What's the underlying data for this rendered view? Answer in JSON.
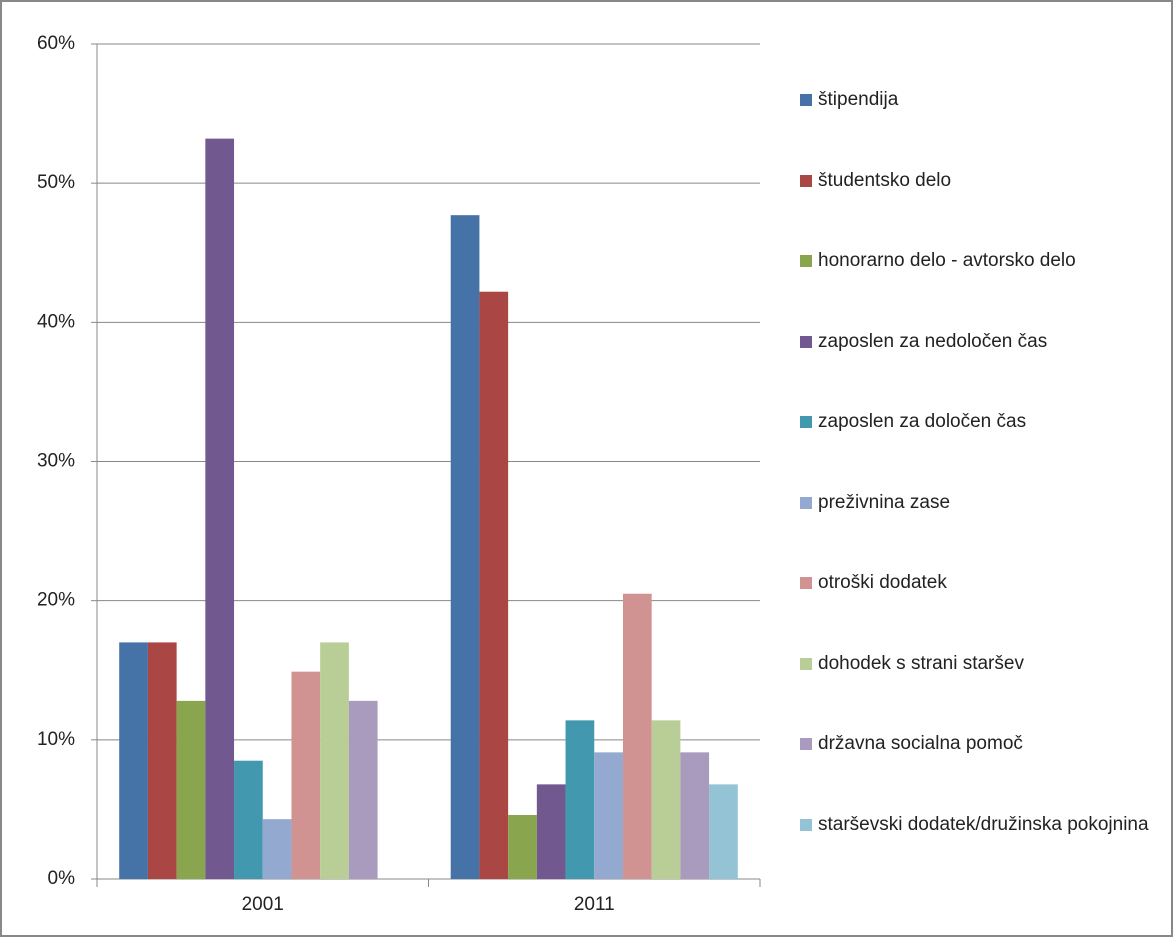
{
  "chart_data": {
    "type": "bar",
    "categories": [
      "2001",
      "2011"
    ],
    "series": [
      {
        "name": "štipendija",
        "color": "#4572a7",
        "values": [
          17.0,
          47.7
        ]
      },
      {
        "name": "študentsko delo",
        "color": "#aa4643",
        "values": [
          17.0,
          42.2
        ]
      },
      {
        "name": "honorarno delo - avtorsko delo",
        "color": "#89a54e",
        "values": [
          12.8,
          4.6
        ]
      },
      {
        "name": "zaposlen za nedoločen čas",
        "color": "#71588f",
        "values": [
          53.2,
          6.8
        ]
      },
      {
        "name": "zaposlen za določen čas",
        "color": "#4198af",
        "values": [
          8.5,
          11.4
        ]
      },
      {
        "name": "preživnina zase",
        "color": "#93a9cf",
        "values": [
          4.3,
          9.1
        ]
      },
      {
        "name": "otroški dodatek",
        "color": "#d19392",
        "values": [
          14.9,
          20.5
        ]
      },
      {
        "name": "dohodek s strani staršev",
        "color": "#b9cd96",
        "values": [
          17.0,
          11.4
        ]
      },
      {
        "name": "državna socialna pomoč",
        "color": "#a99bbd",
        "values": [
          12.8,
          9.1
        ]
      },
      {
        "name": "starševski dodatek/družinska pokojnina",
        "color": "#93c3d5",
        "values": [
          null,
          6.8
        ]
      }
    ],
    "ylim": [
      0,
      60
    ],
    "yticks": [
      {
        "value": 0,
        "label": "0%"
      },
      {
        "value": 10,
        "label": "10%"
      },
      {
        "value": 20,
        "label": "20%"
      },
      {
        "value": 30,
        "label": "30%"
      },
      {
        "value": 40,
        "label": "40%"
      },
      {
        "value": 50,
        "label": "50%"
      },
      {
        "value": 60,
        "label": "60%"
      }
    ],
    "grid": true,
    "legend": "right"
  }
}
